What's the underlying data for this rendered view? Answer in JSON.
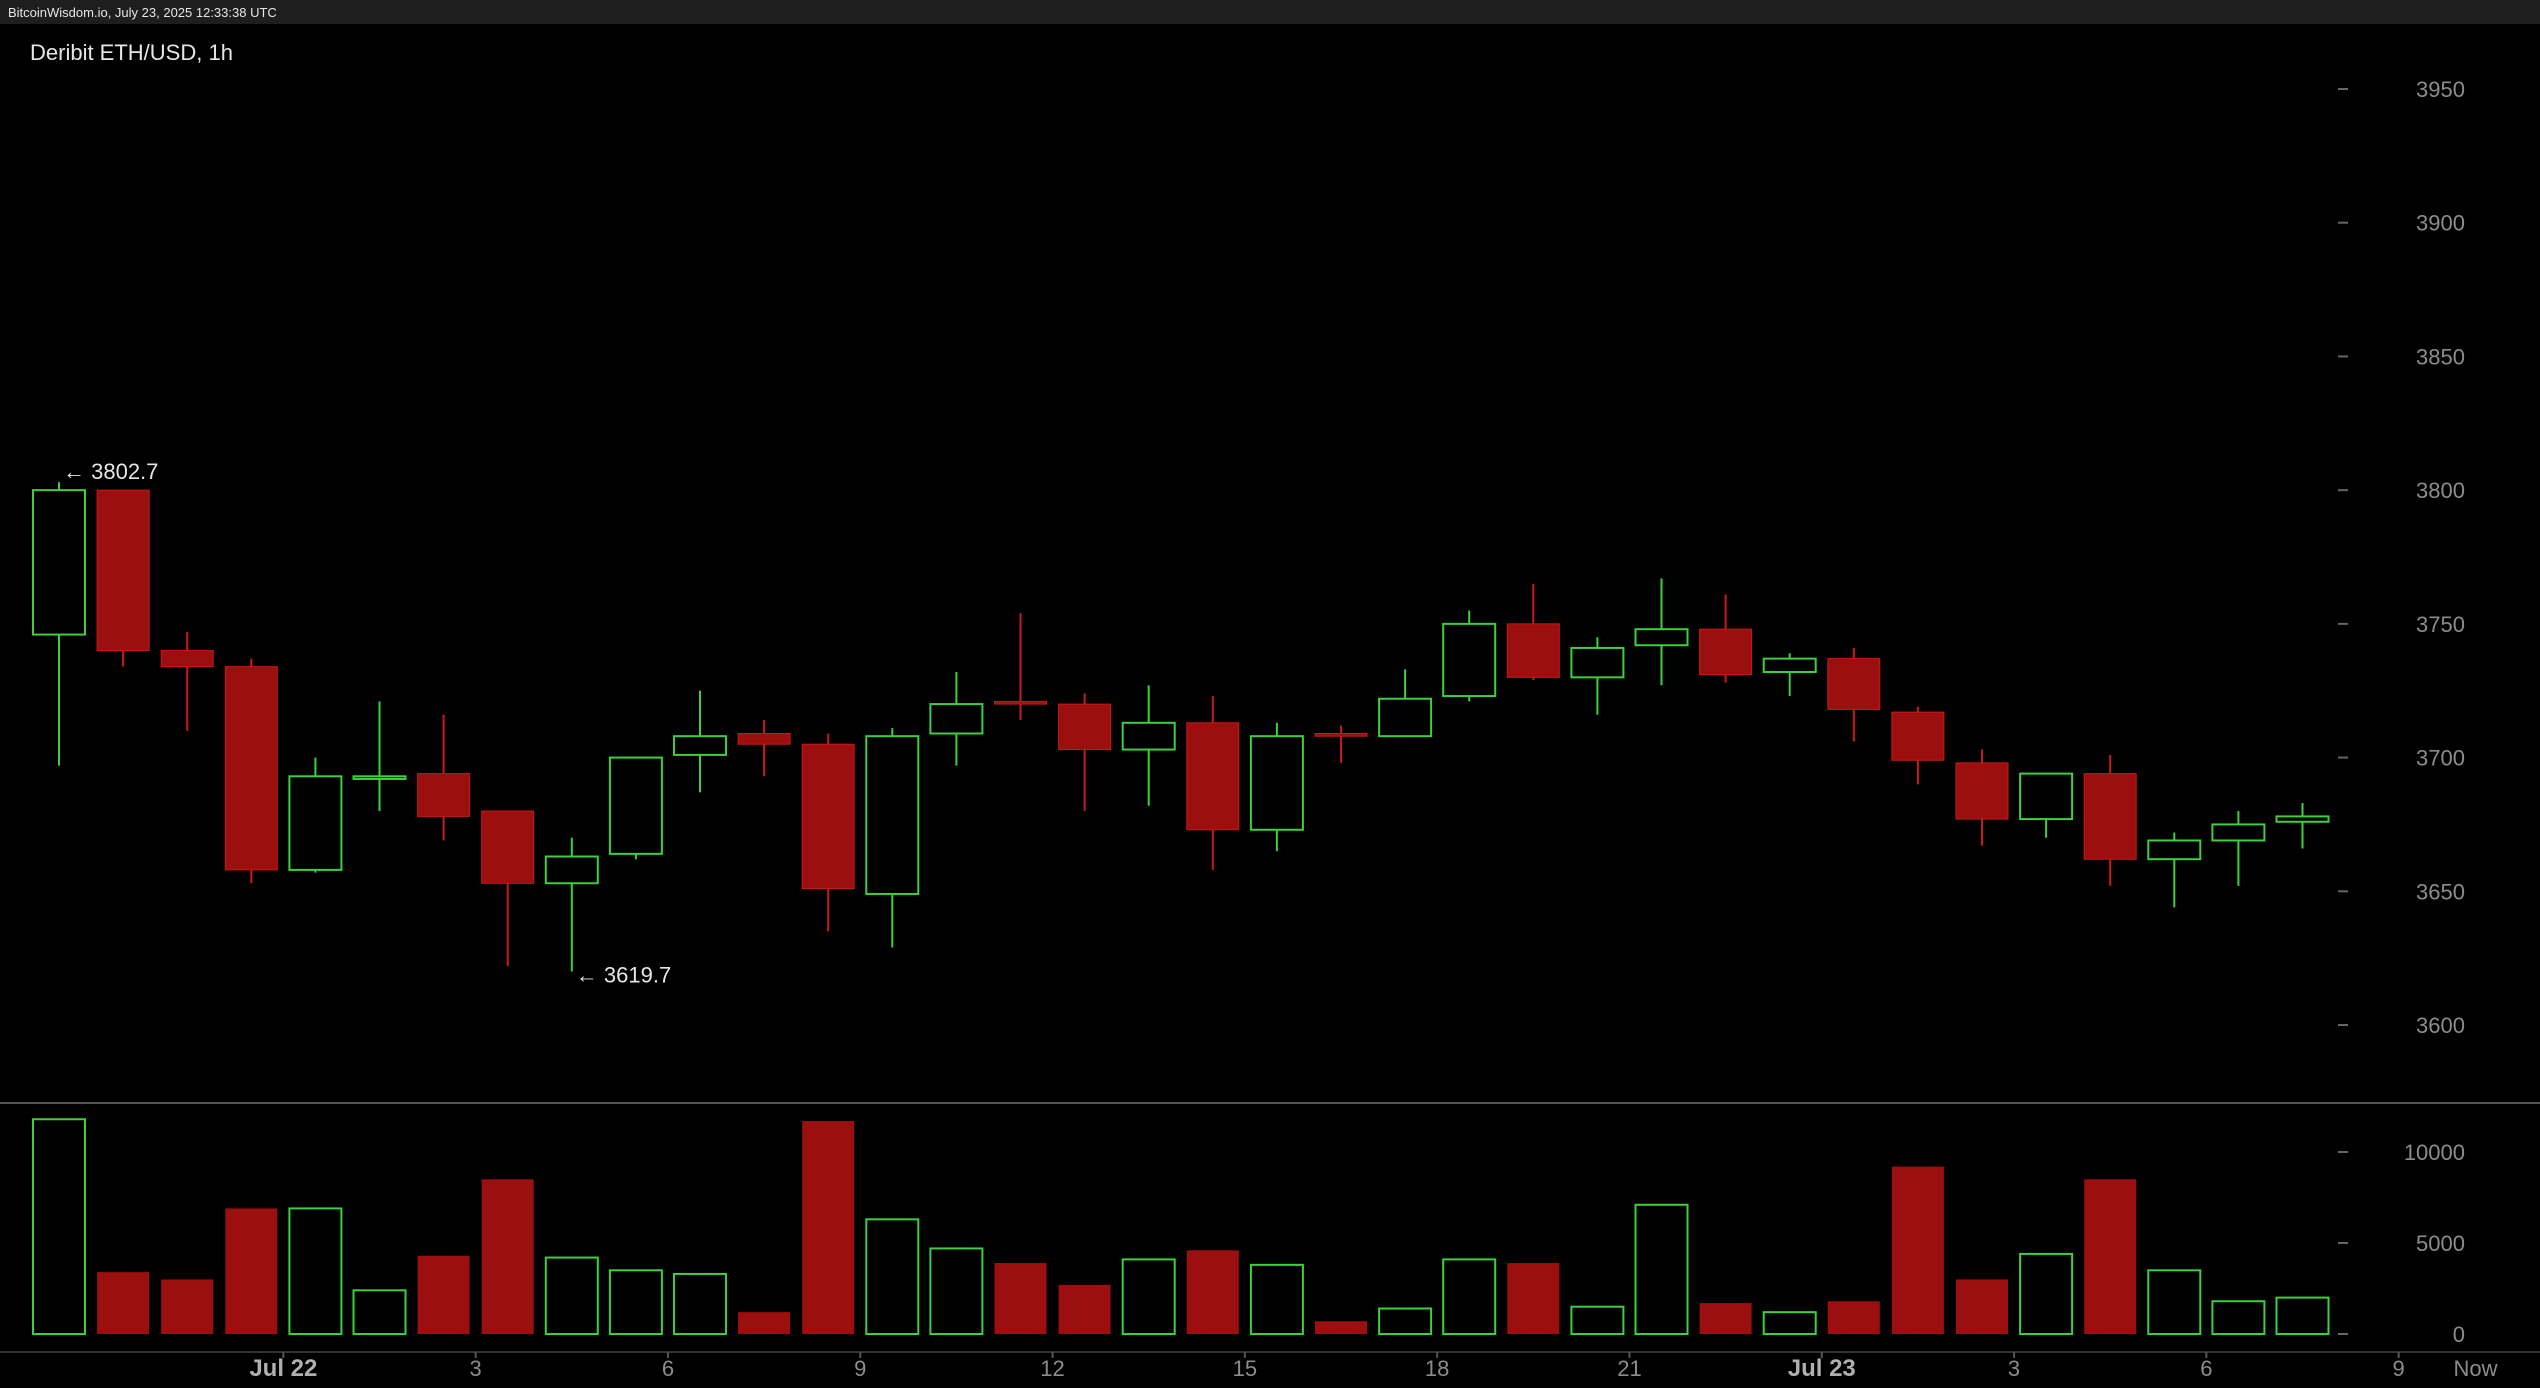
{
  "header": {
    "source_line": "BitcoinWisdom.io, July 23, 2025 12:33:38 UTC",
    "chart_title": "Deribit ETH/USD, 1h"
  },
  "colors": {
    "background": "#000000",
    "up": "#3ecf3e",
    "down": "#9b0f0f",
    "down_wick": "#c81a1a",
    "axis_text": "#8c8c8c",
    "divider": "#555555"
  },
  "chart_data": [
    {
      "type": "candlestick",
      "title": "Deribit ETH/USD, 1h",
      "ylim": [
        3560,
        3980
      ],
      "y_ticks": [
        3600,
        3650,
        3700,
        3750,
        3800,
        3850,
        3900,
        3950
      ],
      "x_tick_labels": [
        {
          "index": 3.5,
          "label": "Jul 22",
          "bold": true
        },
        {
          "index": 6.5,
          "label": "3",
          "bold": false
        },
        {
          "index": 9.5,
          "label": "6",
          "bold": false
        },
        {
          "index": 12.5,
          "label": "9",
          "bold": false
        },
        {
          "index": 15.5,
          "label": "12",
          "bold": false
        },
        {
          "index": 18.5,
          "label": "15",
          "bold": false
        },
        {
          "index": 21.5,
          "label": "18",
          "bold": false
        },
        {
          "index": 24.5,
          "label": "21",
          "bold": false
        },
        {
          "index": 27.5,
          "label": "Jul 23",
          "bold": true
        },
        {
          "index": 30.5,
          "label": "3",
          "bold": false
        },
        {
          "index": 33.5,
          "label": "6",
          "bold": false
        },
        {
          "index": 36.5,
          "label": "9",
          "bold": false
        },
        {
          "index": 37.7,
          "label": "Now",
          "bold": false
        }
      ],
      "annotations": [
        {
          "label": "← 3802.7",
          "index": 0,
          "value": 3802.7
        },
        {
          "label": "← 3619.7",
          "index": 8,
          "value": 3619.7
        }
      ],
      "candles": [
        {
          "o": 3746,
          "h": 3803,
          "l": 3697,
          "c": 3800
        },
        {
          "o": 3800,
          "h": 3800,
          "l": 3734,
          "c": 3740
        },
        {
          "o": 3740,
          "h": 3747,
          "l": 3710,
          "c": 3734
        },
        {
          "o": 3734,
          "h": 3737,
          "l": 3653,
          "c": 3658
        },
        {
          "o": 3658,
          "h": 3700,
          "l": 3657,
          "c": 3693
        },
        {
          "o": 3692,
          "h": 3721,
          "l": 3680,
          "c": 3693
        },
        {
          "o": 3694,
          "h": 3716,
          "l": 3669,
          "c": 3678
        },
        {
          "o": 3680,
          "h": 3680,
          "l": 3622,
          "c": 3653
        },
        {
          "o": 3653,
          "h": 3670,
          "l": 3620,
          "c": 3663
        },
        {
          "o": 3664,
          "h": 3700,
          "l": 3662,
          "c": 3700
        },
        {
          "o": 3701,
          "h": 3725,
          "l": 3687,
          "c": 3708
        },
        {
          "o": 3709,
          "h": 3714,
          "l": 3693,
          "c": 3705
        },
        {
          "o": 3705,
          "h": 3709,
          "l": 3635,
          "c": 3651
        },
        {
          "o": 3649,
          "h": 3711,
          "l": 3629,
          "c": 3708
        },
        {
          "o": 3709,
          "h": 3732,
          "l": 3697,
          "c": 3720
        },
        {
          "o": 3721,
          "h": 3754,
          "l": 3714,
          "c": 3720
        },
        {
          "o": 3720,
          "h": 3724,
          "l": 3680,
          "c": 3703
        },
        {
          "o": 3703,
          "h": 3727,
          "l": 3682,
          "c": 3713
        },
        {
          "o": 3713,
          "h": 3723,
          "l": 3658,
          "c": 3673
        },
        {
          "o": 3673,
          "h": 3713,
          "l": 3665,
          "c": 3708
        },
        {
          "o": 3709,
          "h": 3712,
          "l": 3698,
          "c": 3708
        },
        {
          "o": 3708,
          "h": 3733,
          "l": 3708,
          "c": 3722
        },
        {
          "o": 3723,
          "h": 3755,
          "l": 3721,
          "c": 3750
        },
        {
          "o": 3750,
          "h": 3765,
          "l": 3729,
          "c": 3730
        },
        {
          "o": 3730,
          "h": 3745,
          "l": 3716,
          "c": 3741
        },
        {
          "o": 3742,
          "h": 3767,
          "l": 3727,
          "c": 3748
        },
        {
          "o": 3748,
          "h": 3761,
          "l": 3728,
          "c": 3731
        },
        {
          "o": 3732,
          "h": 3739,
          "l": 3723,
          "c": 3737
        },
        {
          "o": 3737,
          "h": 3741,
          "l": 3706,
          "c": 3718
        },
        {
          "o": 3717,
          "h": 3719,
          "l": 3690,
          "c": 3699
        },
        {
          "o": 3698,
          "h": 3703,
          "l": 3667,
          "c": 3677
        },
        {
          "o": 3677,
          "h": 3694,
          "l": 3670,
          "c": 3694
        },
        {
          "o": 3694,
          "h": 3701,
          "l": 3652,
          "c": 3662
        },
        {
          "o": 3662,
          "h": 3672,
          "l": 3644,
          "c": 3669
        },
        {
          "o": 3669,
          "h": 3680,
          "l": 3652,
          "c": 3675
        },
        {
          "o": 3676,
          "h": 3683,
          "l": 3666,
          "c": 3678
        }
      ]
    },
    {
      "type": "bar",
      "title": "",
      "ylim": [
        0,
        12000
      ],
      "y_ticks": [
        0,
        5000,
        10000
      ],
      "values": [
        11800,
        3400,
        3000,
        6900,
        6900,
        2400,
        4300,
        8500,
        4200,
        3500,
        3300,
        1200,
        11700,
        6300,
        4700,
        3900,
        2700,
        4100,
        4600,
        3800,
        700,
        1400,
        4100,
        3900,
        1500,
        7100,
        1700,
        1200,
        1800,
        9200,
        3000,
        4400,
        8500,
        3500,
        1800,
        2000
      ],
      "directions": [
        "up",
        "down",
        "down",
        "down",
        "up",
        "up",
        "down",
        "down",
        "up",
        "up",
        "up",
        "down",
        "down",
        "up",
        "up",
        "down",
        "down",
        "up",
        "down",
        "up",
        "down",
        "up",
        "up",
        "down",
        "up",
        "up",
        "down",
        "up",
        "down",
        "down",
        "down",
        "up",
        "down",
        "up",
        "up",
        "up"
      ]
    }
  ]
}
